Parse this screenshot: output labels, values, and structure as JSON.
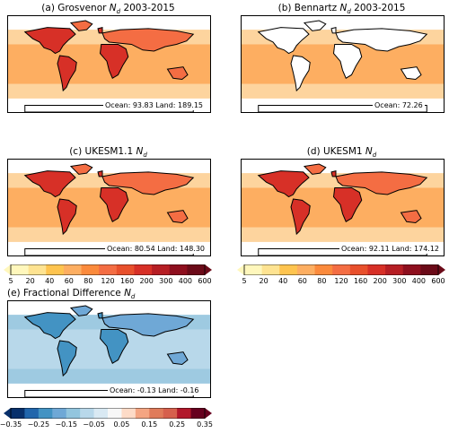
{
  "panels": [
    {
      "key": "a",
      "title": "(a) Grosvenor Nₑ 2003-2015",
      "title_main": "(a) Grosvenor ",
      "title_sub": "d",
      "title_tail": " 2003-2015",
      "stats": "Ocean:  93.83 Land: 189.15",
      "scale": "n"
    },
    {
      "key": "b",
      "title_main": "(b) Bennartz ",
      "title_sub": "d",
      "title_tail": " 2003-2015",
      "stats": "Ocean:  72.26",
      "scale": "n"
    },
    {
      "key": "c",
      "title_main": "(c) UKESM1.1 ",
      "title_sub": "d",
      "title_tail": "",
      "stats": "Ocean:  80.54 Land: 148.30",
      "scale": "n"
    },
    {
      "key": "d",
      "title_main": "(d) UKESM1 ",
      "title_sub": "d",
      "title_tail": "",
      "stats": "Ocean:  92.11 Land: 174.12",
      "scale": "n"
    },
    {
      "key": "e",
      "title_main": "(e) Fractional Difference ",
      "title_sub": "d",
      "title_tail": "",
      "stats": "Ocean: -0.13 Land: -0.16",
      "scale": "diff"
    }
  ],
  "nd_colorbar": {
    "ticks": [
      "5",
      "20",
      "40",
      "60",
      "80",
      "120",
      "160",
      "200",
      "300",
      "400",
      "600"
    ],
    "colors": [
      "#fff7bc",
      "#fee391",
      "#fec44f",
      "#fdae61",
      "#fb8a3c",
      "#f46d43",
      "#e8502c",
      "#d73027",
      "#b61e24",
      "#8e0f1e",
      "#6b0a18"
    ]
  },
  "diff_colorbar": {
    "ticks": [
      "−0.35",
      "−0.25",
      "−0.15",
      "−0.05",
      "0.05",
      "0.15",
      "0.25",
      "0.35"
    ],
    "colors": [
      "#08306b",
      "#2166ac",
      "#4393c3",
      "#6fa8d6",
      "#92c5de",
      "#b8d8ea",
      "#d9e9f3",
      "#f7f7f7",
      "#fddbc7",
      "#f4a582",
      "#e07b5a",
      "#d6604d",
      "#b2182b",
      "#67001f"
    ]
  }
}
